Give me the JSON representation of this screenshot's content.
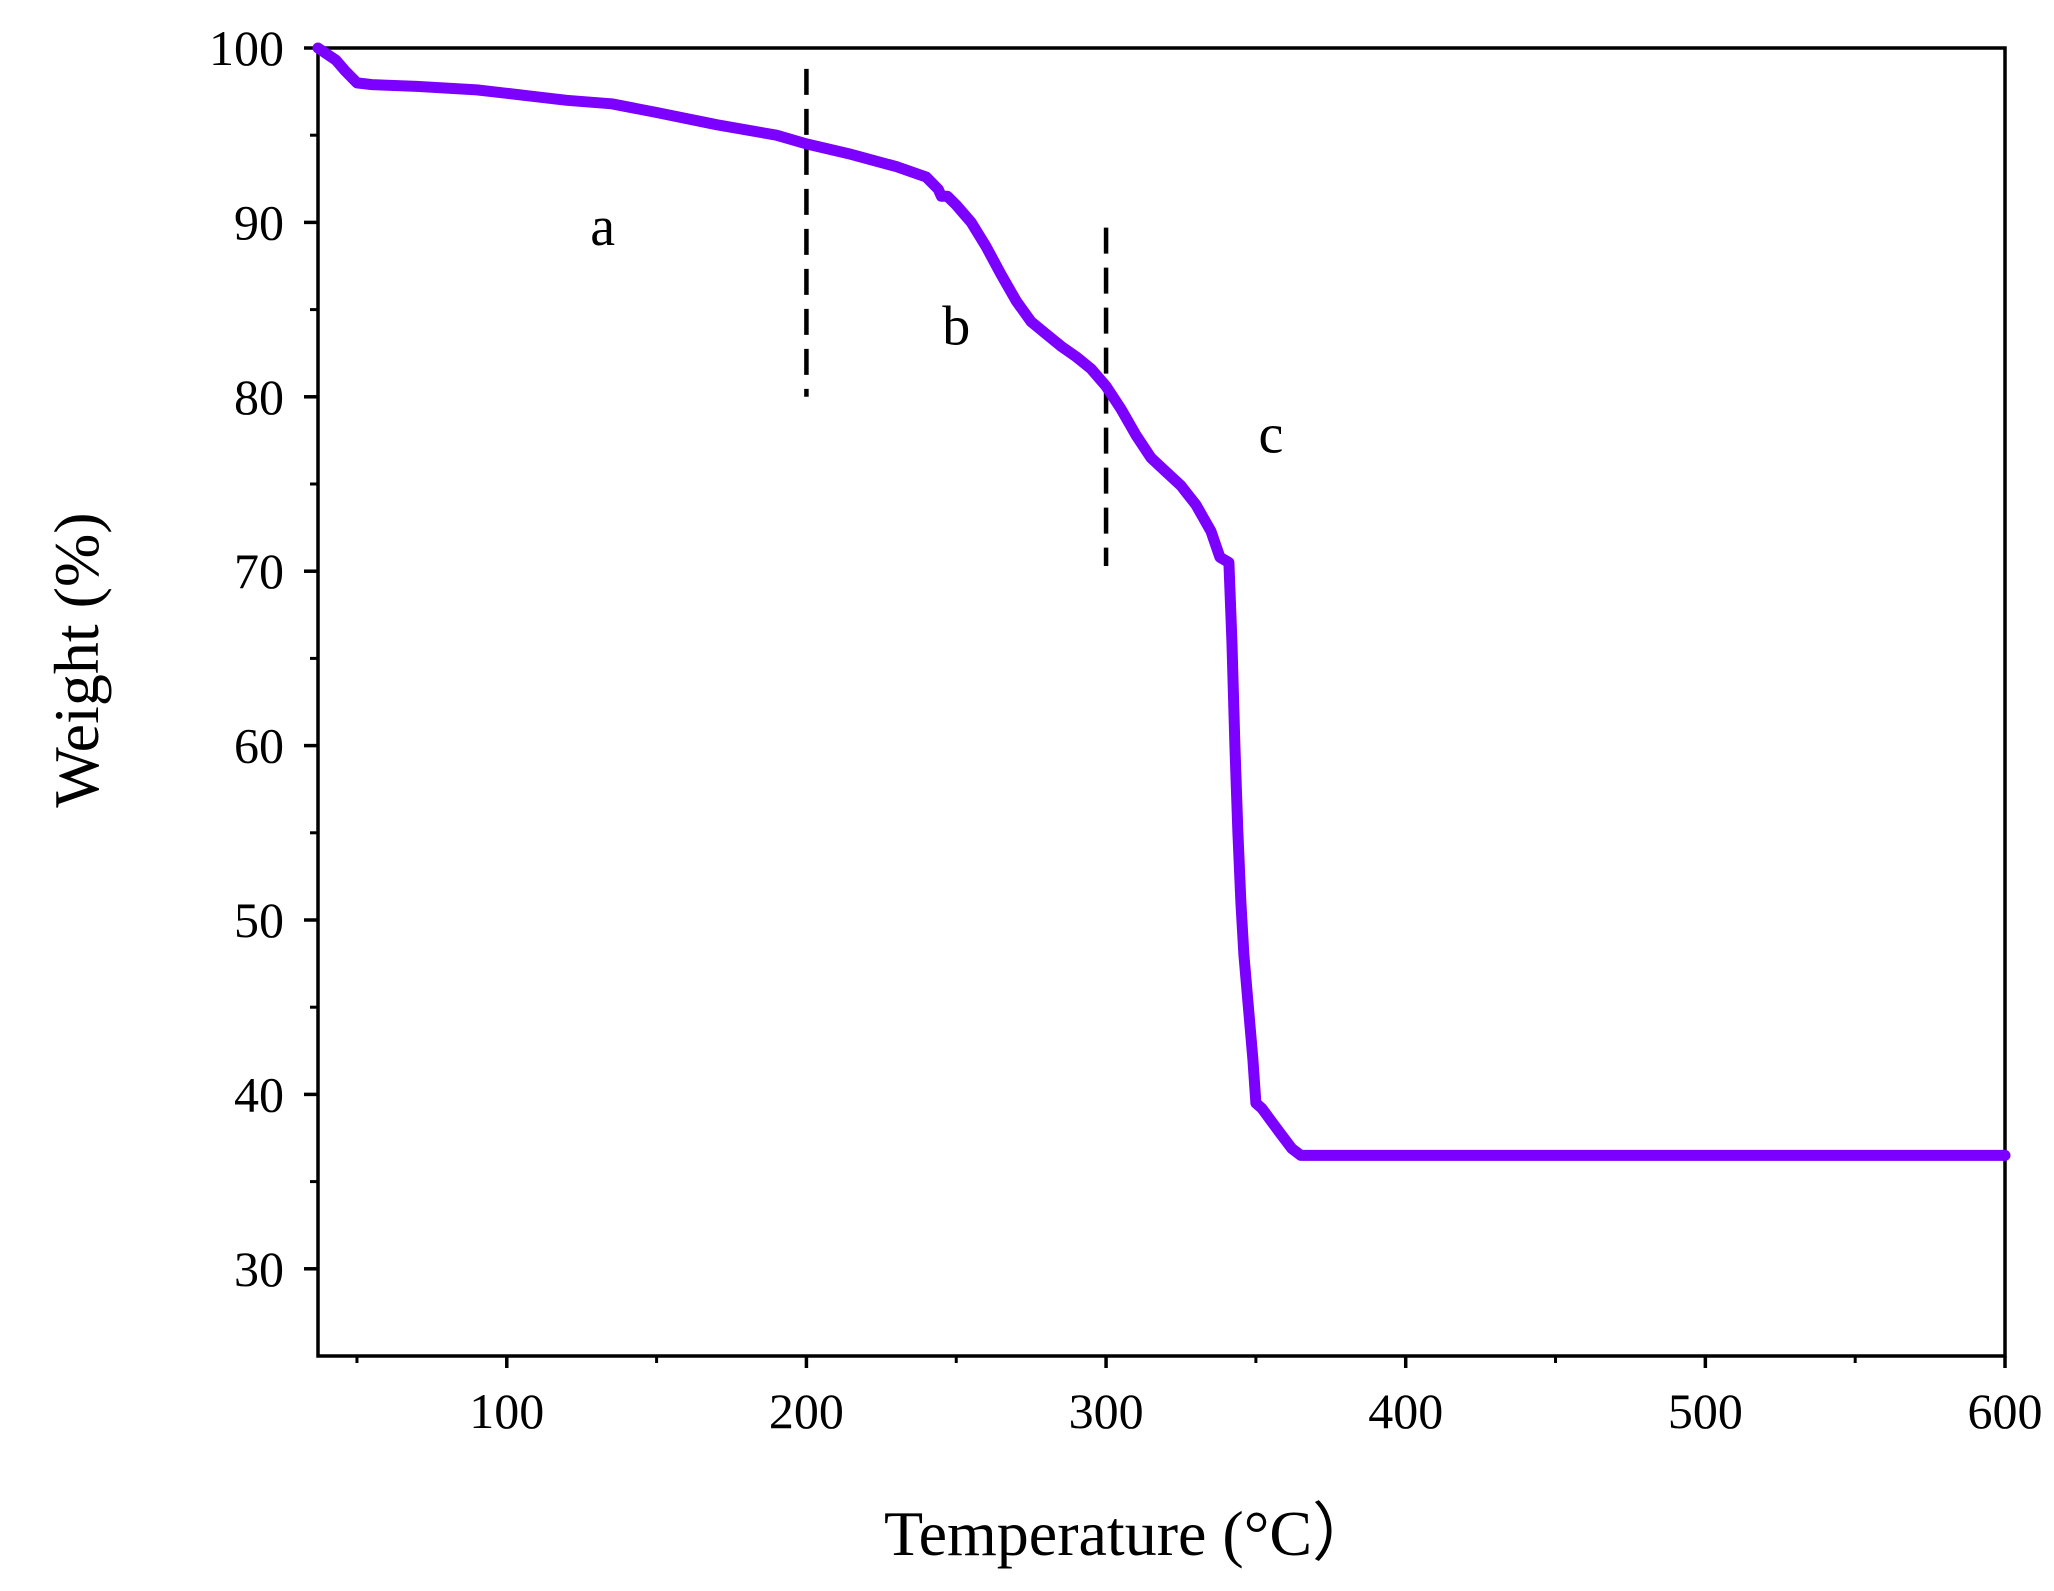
{
  "chart_data": {
    "type": "line",
    "xlabel": "Temperature (°C）",
    "ylabel": "Weight (%)",
    "xlim": [
      37,
      600
    ],
    "ylim": [
      25,
      100
    ],
    "x_major_ticks": [
      100,
      200,
      300,
      400,
      500,
      600
    ],
    "x_minor_ticks": [
      50,
      150,
      250,
      350,
      450,
      550
    ],
    "y_major_ticks": [
      30,
      40,
      50,
      60,
      70,
      80,
      90,
      100
    ],
    "y_minor_ticks": [
      35,
      45,
      55,
      65,
      75,
      85,
      95
    ],
    "grid": false,
    "series": [
      {
        "color": "#7b00ff",
        "x": [
          37,
          43,
          46,
          50,
          55,
          70,
          90,
          100,
          110,
          120,
          135,
          150,
          170,
          190,
          200,
          215,
          230,
          240,
          244,
          245,
          247,
          250,
          255,
          260,
          265,
          270,
          275,
          280,
          285,
          290,
          295,
          300,
          305,
          310,
          315,
          320,
          325,
          330,
          335,
          338,
          341,
          342,
          343,
          344,
          345,
          346,
          347,
          348,
          349,
          350,
          352,
          355,
          358,
          362,
          365,
          380,
          400,
          450,
          500,
          550,
          600
        ],
        "y": [
          100,
          99.3,
          98.7,
          98.0,
          97.9,
          97.8,
          97.6,
          97.4,
          97.2,
          97.0,
          96.8,
          96.3,
          95.6,
          95.0,
          94.5,
          93.9,
          93.2,
          92.6,
          91.9,
          91.5,
          91.5,
          91.0,
          90.0,
          88.6,
          87.0,
          85.5,
          84.3,
          83.6,
          82.9,
          82.3,
          81.6,
          80.6,
          79.3,
          77.8,
          76.5,
          75.7,
          74.9,
          73.8,
          72.3,
          70.8,
          70.5,
          66.0,
          60.0,
          55.0,
          51.0,
          48.0,
          46.0,
          44.0,
          42.0,
          39.5,
          39.2,
          38.5,
          37.8,
          36.9,
          36.5,
          36.5,
          36.5,
          36.5,
          36.5,
          36.5,
          36.5
        ]
      }
    ],
    "reference_lines": [
      {
        "x": 200,
        "y_from": 80,
        "y_to": 98.8,
        "style": "dashed"
      },
      {
        "x": 300,
        "y_from": 70.3,
        "y_to": 89.7,
        "style": "dashed"
      }
    ],
    "annotations": [
      {
        "text": "a",
        "x": 132,
        "y": 88.7
      },
      {
        "text": "b",
        "x": 250,
        "y": 83.0
      },
      {
        "text": "c",
        "x": 355,
        "y": 76.8
      }
    ]
  }
}
